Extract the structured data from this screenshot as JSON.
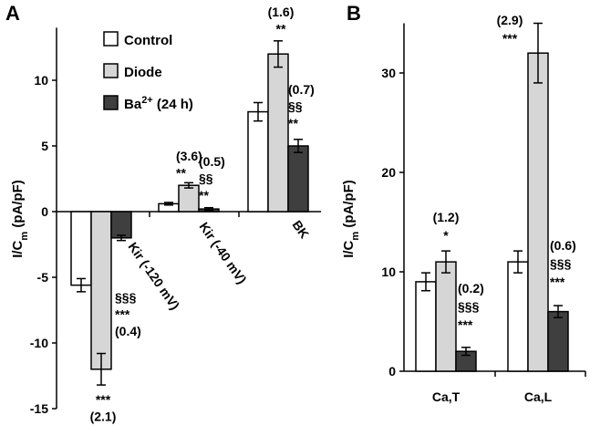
{
  "panels": {
    "A": {
      "letter": "A",
      "ylabel": "I/C_m (pA/pF)"
    },
    "B": {
      "letter": "B",
      "ylabel": "I/C_m (pA/pF)"
    }
  },
  "legend": [
    {
      "label": "Control",
      "sup": "",
      "suffix": "",
      "color": "#ffffff"
    },
    {
      "label": "Diode",
      "sup": "",
      "suffix": "",
      "color": "#d6d6d6"
    },
    {
      "label": "Ba",
      "sup": "2+",
      "suffix": " (24 h)",
      "color": "#3f3f3f"
    }
  ],
  "chart_data": [
    {
      "panel": "A",
      "type": "bar",
      "ylabel": "I/C_m (pA/pF)",
      "ylim": [
        -15,
        14
      ],
      "yticks": [
        -15,
        -10,
        -5,
        0,
        5,
        10
      ],
      "categories": [
        "Kir (-120 mV)",
        "Kir (-40 mV)",
        "BK"
      ],
      "series": [
        {
          "name": "Control",
          "values": [
            -5.6,
            0.6,
            7.6
          ],
          "errors": [
            0.5,
            0.1,
            0.7
          ]
        },
        {
          "name": "Diode",
          "values": [
            -12.0,
            2.0,
            12.0
          ],
          "errors": [
            1.2,
            0.2,
            1.0
          ]
        },
        {
          "name": "Ba2+ (24 h)",
          "values": [
            -2.0,
            0.2,
            5.0
          ],
          "errors": [
            0.2,
            0.1,
            0.5
          ]
        }
      ],
      "annotations": [
        {
          "category": 0,
          "series": 1,
          "lines": [
            "***",
            "(2.1)"
          ]
        },
        {
          "category": 0,
          "series": 2,
          "lines": [
            "§§§",
            "***",
            "(0.4)"
          ]
        },
        {
          "category": 1,
          "series": 1,
          "lines": [
            "(3.6)",
            "**"
          ]
        },
        {
          "category": 1,
          "series": 2,
          "lines": [
            "(0.5)",
            "§§",
            "**"
          ]
        },
        {
          "category": 2,
          "series": 1,
          "lines": [
            "(1.6)",
            "**"
          ]
        },
        {
          "category": 2,
          "series": 2,
          "lines": [
            "(0.7)",
            "§§",
            "**"
          ]
        }
      ]
    },
    {
      "panel": "B",
      "type": "bar",
      "ylabel": "I/C_m (pA/pF)",
      "ylim": [
        0,
        35
      ],
      "yticks": [
        0,
        10,
        20,
        30
      ],
      "categories": [
        "Ca,T",
        "Ca,L"
      ],
      "series": [
        {
          "name": "Control",
          "values": [
            9.0,
            11.0
          ],
          "errors": [
            0.9,
            1.1
          ]
        },
        {
          "name": "Diode",
          "values": [
            11.0,
            32.0
          ],
          "errors": [
            1.1,
            3.0
          ]
        },
        {
          "name": "Ba2+ (24 h)",
          "values": [
            2.0,
            6.0
          ],
          "errors": [
            0.4,
            0.6
          ]
        }
      ],
      "annotations": [
        {
          "category": 0,
          "series": 1,
          "lines": [
            "(1.2)",
            "*"
          ]
        },
        {
          "category": 0,
          "series": 2,
          "lines": [
            "(0.2)",
            "§§§",
            "***"
          ]
        },
        {
          "category": 1,
          "series": 1,
          "lines": [
            "(2.9)",
            "***"
          ]
        },
        {
          "category": 1,
          "series": 2,
          "lines": [
            "(0.6)",
            "§§§",
            "***"
          ]
        }
      ]
    }
  ],
  "colors": {
    "control": "#ffffff",
    "diode": "#d6d6d6",
    "ba": "#3f3f3f",
    "stroke": "#000000"
  }
}
